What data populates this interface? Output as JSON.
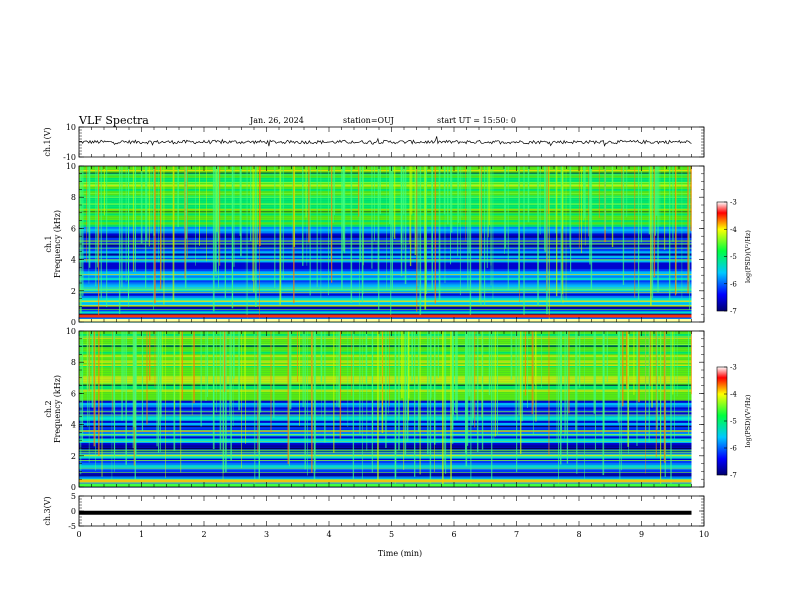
{
  "header": {
    "title": "VLF Spectra",
    "date": "Jan. 26, 2024",
    "station": "station=OUJ",
    "start": "start UT =  15:50: 0"
  },
  "chart_data": [
    {
      "type": "line",
      "panel": "ch1-waveform",
      "ylabel": "ch.1(V)",
      "ylim": [
        -10,
        10
      ],
      "yticks": [
        "10",
        "-10"
      ],
      "series": [
        {
          "x": [
            0,
            9.8
          ],
          "y": [
            0,
            0
          ]
        }
      ]
    },
    {
      "type": "heatmap",
      "panel": "ch1-spectrogram",
      "ylabel": "ch.1",
      "ylabel2": "Frequency (kHz)",
      "ylim": [
        0,
        10
      ],
      "yticks": [
        "0",
        "2",
        "4",
        "6",
        "8",
        "10"
      ],
      "xlim": [
        0,
        10
      ],
      "data_xrange": [
        0,
        9.8
      ],
      "colorbar": {
        "label": "log(PSD)(V²/Hz)",
        "range": [
          -7,
          -3
        ],
        "ticks": [
          "-3",
          "-4",
          "-5",
          "-6",
          "-7"
        ]
      }
    },
    {
      "type": "heatmap",
      "panel": "ch2-spectrogram",
      "ylabel": "ch.2",
      "ylabel2": "Frequency (kHz)",
      "ylim": [
        0,
        10
      ],
      "yticks": [
        "0",
        "2",
        "4",
        "6",
        "8",
        "10"
      ],
      "xlim": [
        0,
        10
      ],
      "data_xrange": [
        0,
        9.8
      ],
      "colorbar": {
        "label": "log(PSD)(V²/Hz)",
        "range": [
          -7,
          -3
        ],
        "ticks": [
          "-3",
          "-4",
          "-5",
          "-6",
          "-7"
        ]
      }
    },
    {
      "type": "line",
      "panel": "ch3-waveform",
      "ylabel": "ch.3(V)",
      "ylim": [
        -5,
        5
      ],
      "yticks": [
        "5",
        "0",
        "-5"
      ],
      "series": [
        {
          "x": [
            0,
            9.8
          ],
          "y": [
            -0.6,
            -0.6
          ]
        }
      ]
    }
  ],
  "xaxis": {
    "label": "Time (min)",
    "ticks": [
      "0",
      "1",
      "2",
      "3",
      "4",
      "5",
      "6",
      "7",
      "8",
      "9",
      "10"
    ],
    "range": [
      0,
      10
    ]
  }
}
